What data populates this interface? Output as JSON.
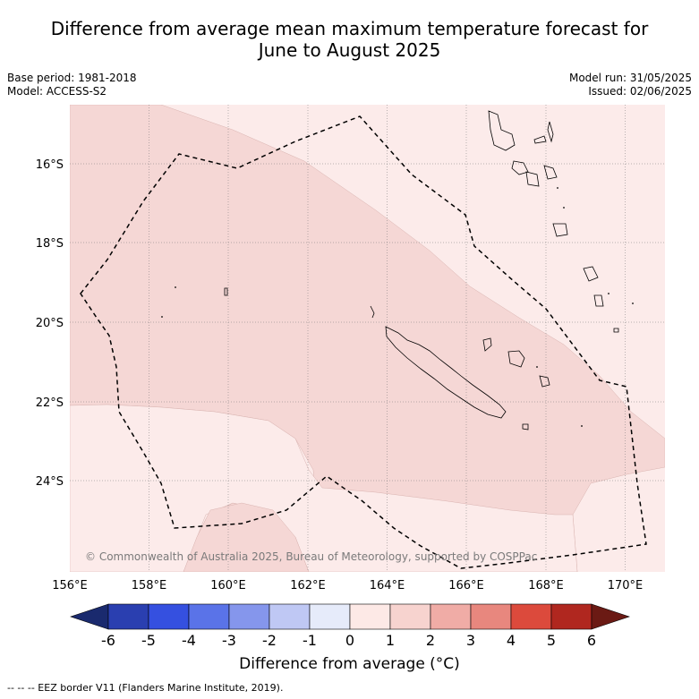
{
  "title_line1": "Difference from average mean maximum temperature forecast for",
  "title_line2": "June to August 2025",
  "base_period": "Base period: 1981-2018",
  "model": "Model: ACCESS-S2",
  "model_run": "Model run: 31/05/2025",
  "issued": "Issued: 02/06/2025",
  "copyright": "© Commonwealth of Australia 2025, Bureau of Meteorology, supported by COSPPac",
  "lon_ticks": [
    "156°E",
    "158°E",
    "160°E",
    "162°E",
    "164°E",
    "166°E",
    "168°E",
    "170°E"
  ],
  "lat_ticks": [
    "16°S",
    "18°S",
    "20°S",
    "22°S",
    "24°S"
  ],
  "colorbar": {
    "title": "Difference from average (°C)",
    "ticks": [
      "-6",
      "-5",
      "-4",
      "-3",
      "-2",
      "-1",
      "0",
      "1",
      "2",
      "3",
      "4",
      "5",
      "6"
    ],
    "colors": [
      "#1a2a6e",
      "#2a3fb0",
      "#3550e0",
      "#5a73e8",
      "#8596ec",
      "#bfc8f4",
      "#e6ebfa",
      "#fde9e6",
      "#f7d3cf",
      "#f0aca6",
      "#e8877e",
      "#dc4a3c",
      "#b0271f",
      "#6b1a14"
    ]
  },
  "footer": "-- -- -- EEZ border V11 (Flanders Marine Institute, 2019)."
}
